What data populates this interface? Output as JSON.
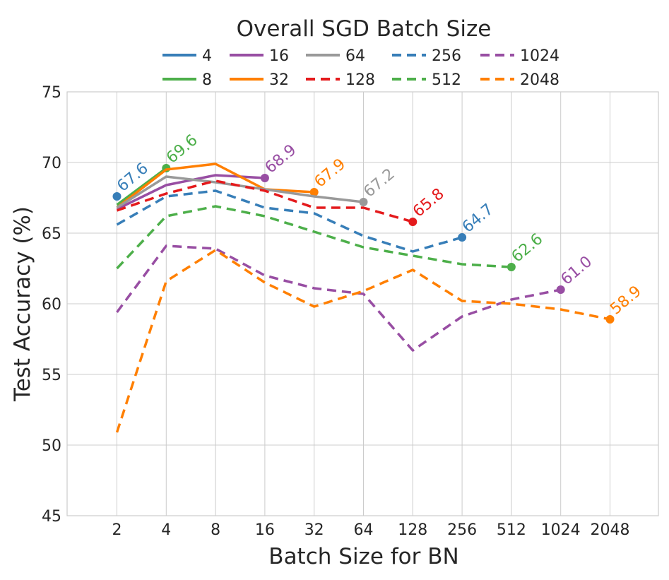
{
  "chart_data": {
    "type": "line",
    "xlabel": "Batch Size for BN",
    "ylabel": "Test Accuracy (%)",
    "x_categories": [
      "2",
      "4",
      "8",
      "16",
      "32",
      "64",
      "128",
      "256",
      "512",
      "1024",
      "2048"
    ],
    "ylim": [
      45,
      75
    ],
    "yticks": [
      "45",
      "50",
      "55",
      "60",
      "65",
      "70",
      "75"
    ],
    "grid": true,
    "legend": {
      "title": "Overall SGD Batch Size",
      "placement": "top-center",
      "columns": 5
    },
    "series": [
      {
        "name": "4",
        "color": "#377eb8",
        "style": "solid",
        "values": [
          67.6,
          null,
          null,
          null,
          null,
          null,
          null,
          null,
          null,
          null,
          null
        ],
        "end_label": "67.6"
      },
      {
        "name": "8",
        "color": "#4daf4a",
        "style": "solid",
        "values": [
          67.0,
          69.6,
          null,
          null,
          null,
          null,
          null,
          null,
          null,
          null,
          null
        ],
        "end_label": "69.6"
      },
      {
        "name": "16",
        "color": "#984ea3",
        "style": "solid",
        "values": [
          66.7,
          68.4,
          69.1,
          68.9,
          null,
          null,
          null,
          null,
          null,
          null,
          null
        ],
        "end_label": "68.9"
      },
      {
        "name": "32",
        "color": "#ff7f00",
        "style": "solid",
        "values": [
          66.8,
          69.5,
          69.9,
          68.1,
          67.9,
          null,
          null,
          null,
          null,
          null,
          null
        ],
        "end_label": "67.9"
      },
      {
        "name": "64",
        "color": "#999999",
        "style": "solid",
        "values": [
          66.8,
          69.0,
          68.6,
          68.1,
          67.6,
          67.2,
          null,
          null,
          null,
          null,
          null
        ],
        "end_label": "67.2"
      },
      {
        "name": "128",
        "color": "#e41a1c",
        "style": "dashed",
        "values": [
          66.6,
          67.8,
          68.7,
          68.0,
          66.8,
          66.8,
          65.8,
          null,
          null,
          null,
          null
        ],
        "end_label": "65.8"
      },
      {
        "name": "256",
        "color": "#377eb8",
        "style": "dashed",
        "values": [
          65.6,
          67.6,
          68.0,
          66.8,
          66.4,
          64.8,
          63.7,
          64.7,
          null,
          null,
          null
        ],
        "end_label": "64.7"
      },
      {
        "name": "512",
        "color": "#4daf4a",
        "style": "dashed",
        "values": [
          62.5,
          66.2,
          66.9,
          66.2,
          65.1,
          64.0,
          63.4,
          62.8,
          62.6,
          null,
          null
        ],
        "end_label": "62.6"
      },
      {
        "name": "1024",
        "color": "#984ea3",
        "style": "dashed",
        "values": [
          59.4,
          64.1,
          63.9,
          62.0,
          61.1,
          60.7,
          56.7,
          59.1,
          60.3,
          61.0,
          null
        ],
        "end_label": "61.0"
      },
      {
        "name": "2048",
        "color": "#ff7f00",
        "style": "dashed",
        "values": [
          50.9,
          61.6,
          63.8,
          61.5,
          59.8,
          60.9,
          62.4,
          60.2,
          60.0,
          59.6,
          58.9
        ],
        "end_label": "58.9"
      }
    ]
  }
}
